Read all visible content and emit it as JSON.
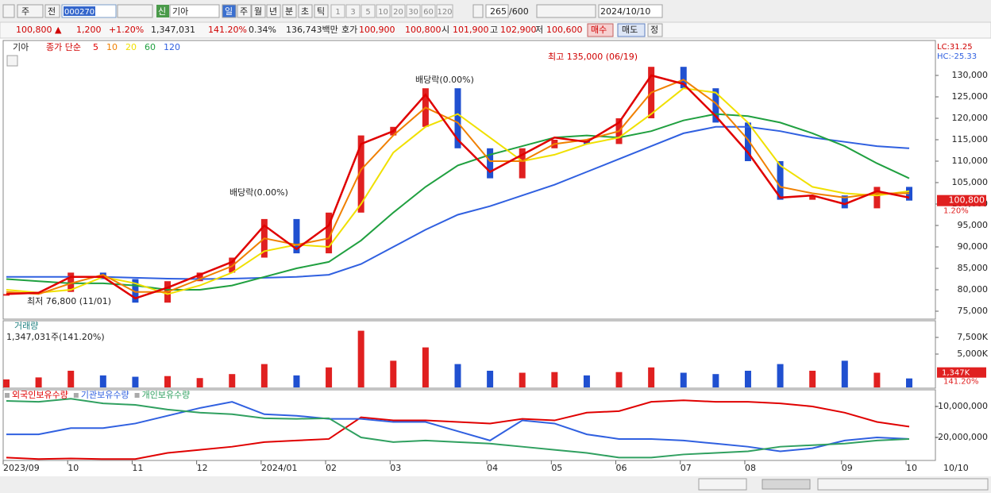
{
  "toolbar": {
    "market": "주",
    "kind": "전",
    "code": "000270",
    "badge": "신",
    "name": "기아",
    "periods": [
      "일",
      "주",
      "월",
      "년",
      "분",
      "초",
      "틱"
    ],
    "intervals": [
      "1",
      "3",
      "5",
      "10",
      "20",
      "30",
      "60",
      "120"
    ],
    "count": "265",
    "max": "/600",
    "date": "2024/10/10"
  },
  "quote": {
    "price": "100,800 ▲",
    "change": "1,200",
    "rate": "+1.20%",
    "volume": "1,347,031",
    "volume_rate": "141.20%",
    "turnover": "0.34%",
    "amount": "136,743백만",
    "ask_label": "호가",
    "ask": "100,900",
    "bid": "100,800",
    "open_label": "시",
    "open": "101,900",
    "high_label": "고",
    "high": "102,900",
    "low_label": "저",
    "low": "100,600",
    "buy": "매수",
    "sell": "매도",
    "fix": "정"
  },
  "chart_data": [
    {
      "type": "price",
      "stock": "기아",
      "legend_prefix": "종가 단순",
      "lc": "LC:31.25",
      "hc": "HC:-25.33",
      "last_label": "100,800",
      "last_rate": "1.20%",
      "high_note": "최고 135,000 (06/19)",
      "low_note": "최저 76,800 (11/01)",
      "dividend_note": "배당락(0.00%)",
      "categories": [
        "2023/09",
        null,
        "10",
        null,
        "11",
        null,
        "12",
        null,
        "2024/01",
        null,
        "02",
        null,
        "03",
        null,
        null,
        "04",
        null,
        "05",
        null,
        "06",
        null,
        "07",
        null,
        "08",
        null,
        null,
        "09",
        null,
        "10"
      ],
      "date_label": "10/10",
      "values": [
        79000,
        79500,
        84000,
        82500,
        77000,
        82000,
        84000,
        87500,
        96500,
        88500,
        98000,
        116000,
        118000,
        127000,
        113000,
        106000,
        113000,
        115000,
        114000,
        120000,
        132000,
        127000,
        119000,
        110000,
        101000,
        102000,
        99000,
        104000,
        100800
      ],
      "series": [
        {
          "name": "5",
          "color": "#e00000",
          "values": [
            79000,
            79300,
            83000,
            83000,
            78000,
            80500,
            83500,
            86500,
            95000,
            89500,
            95000,
            114000,
            117000,
            125500,
            115000,
            107500,
            111500,
            115500,
            114500,
            119000,
            130000,
            128000,
            120500,
            112000,
            101500,
            102000,
            100000,
            103000,
            101500
          ]
        },
        {
          "name": "10",
          "color": "#f08000",
          "values": [
            79500,
            79000,
            81500,
            83500,
            79500,
            79500,
            82500,
            85500,
            92000,
            90500,
            92000,
            108000,
            116000,
            122500,
            119000,
            110000,
            110000,
            114000,
            115000,
            117000,
            126000,
            129000,
            123500,
            115000,
            104000,
            102500,
            101500,
            102500,
            102500
          ]
        },
        {
          "name": "20",
          "color": "#f0e000",
          "values": [
            80000,
            79300,
            80000,
            83000,
            81500,
            79000,
            81000,
            84000,
            89000,
            90500,
            90000,
            100000,
            112000,
            118000,
            121000,
            115500,
            110000,
            111500,
            114000,
            115500,
            121000,
            127000,
            126000,
            119000,
            109000,
            104000,
            102500,
            102000,
            103000
          ]
        },
        {
          "name": "60",
          "color": "#20a040",
          "values": [
            82500,
            82000,
            81500,
            81500,
            81000,
            80000,
            80000,
            81000,
            83000,
            85000,
            86500,
            91500,
            98000,
            104000,
            109000,
            111500,
            113500,
            115500,
            116000,
            115500,
            117000,
            119500,
            121000,
            120500,
            119000,
            116500,
            113500,
            109500,
            106000
          ]
        },
        {
          "name": "120",
          "color": "#3060e0",
          "values": [
            83000,
            83000,
            83000,
            83000,
            82800,
            82600,
            82500,
            82600,
            82800,
            83000,
            83500,
            86000,
            90000,
            94000,
            97500,
            99500,
            102000,
            104500,
            107500,
            110500,
            113500,
            116500,
            118000,
            118000,
            117000,
            115500,
            114500,
            113500,
            113000
          ]
        }
      ],
      "ylim": [
        73150,
        137960
      ],
      "yticks": [
        {
          "value": 75000,
          "label": "75,000"
        },
        {
          "value": 80000,
          "label": "80,000"
        },
        {
          "value": 85000,
          "label": "85,000"
        },
        {
          "value": 90000,
          "label": "90,000"
        },
        {
          "value": 95000,
          "label": "95,000"
        },
        {
          "value": 100000,
          "label": "100,000"
        },
        {
          "value": 105000,
          "label": "105,000"
        },
        {
          "value": 110000,
          "label": "110,000"
        },
        {
          "value": 115000,
          "label": "115,000"
        },
        {
          "value": 120000,
          "label": "120,000"
        },
        {
          "value": 125000,
          "label": "125,000"
        },
        {
          "value": 130000,
          "label": "130,000"
        }
      ]
    },
    {
      "type": "bar",
      "title": "거래량",
      "subtitle": "1,347,031주(141.20%)",
      "last_label": "1,347K",
      "last_rate": "141.20%",
      "values": [
        1200000,
        1500000,
        2500000,
        1800000,
        1600000,
        1700000,
        1400000,
        2000000,
        3500000,
        1800000,
        3000000,
        8500000,
        4000000,
        6000000,
        3500000,
        2500000,
        2200000,
        2300000,
        1800000,
        2300000,
        3000000,
        2200000,
        2000000,
        2500000,
        3500000,
        2500000,
        4000000,
        2200000,
        1347031
      ],
      "ylim": [
        0,
        10000000
      ],
      "yticks": [
        {
          "value": 5000000,
          "label": "5,000K"
        },
        {
          "value": 7500000,
          "label": "7,500K"
        }
      ]
    },
    {
      "type": "line",
      "series": [
        {
          "name": "외국인보유수량",
          "color": "#e00000",
          "values": [
            -26500000,
            -27000000,
            -26800000,
            -27000000,
            -27000000,
            -25000000,
            -24000000,
            -23000000,
            -21500000,
            -21000000,
            -20500000,
            -13500000,
            -14500000,
            -14500000,
            -15000000,
            -15500000,
            -14000000,
            -14500000,
            -12000000,
            -11500000,
            -8500000,
            -8000000,
            -8500000,
            -8500000,
            -9000000,
            -10000000,
            -12000000,
            -15000000,
            -16500000
          ]
        },
        {
          "name": "기관보유수량",
          "color": "#3060e0",
          "values": [
            -19000000,
            -19000000,
            -17000000,
            -17000000,
            -15500000,
            -13000000,
            -10500000,
            -8500000,
            -12500000,
            -13000000,
            -14000000,
            -14000000,
            -15000000,
            -15000000,
            -18000000,
            -21000000,
            -14500000,
            -15500000,
            -19000000,
            -20500000,
            -20500000,
            -21000000,
            -22000000,
            -23000000,
            -24500000,
            -23500000,
            -21000000,
            -20000000,
            -20500000
          ]
        },
        {
          "name": "개인보유수량",
          "color": "#30a060",
          "values": [
            -8200000,
            -8500000,
            -7500000,
            -9000000,
            -9500000,
            -11000000,
            -12000000,
            -12500000,
            -13800000,
            -14000000,
            -13800000,
            -20000000,
            -21500000,
            -21000000,
            -21500000,
            -22000000,
            -23000000,
            -24000000,
            -25000000,
            -26500000,
            -26500000,
            -25500000,
            -25000000,
            -24500000,
            -23000000,
            -22500000,
            -22000000,
            -21000000,
            -20500000
          ]
        }
      ],
      "ylim": [
        -27440000,
        -4870000
      ],
      "yticks": [
        {
          "value": -10000000,
          "label": "-10,000,000"
        },
        {
          "value": -20000000,
          "label": "-20,000,000"
        }
      ]
    }
  ]
}
